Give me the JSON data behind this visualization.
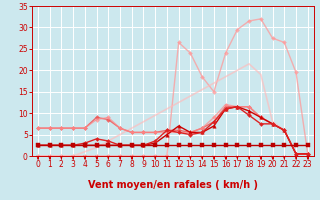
{
  "background_color": "#cce8ee",
  "grid_color": "#ffffff",
  "xlabel": "Vent moyen/en rafales ( km/h )",
  "xlabel_color": "#cc0000",
  "xlabel_fontsize": 7,
  "tick_color": "#cc0000",
  "arrow_color": "#cc0000",
  "xlim": [
    -0.5,
    23.5
  ],
  "ylim": [
    0,
    35
  ],
  "yticks": [
    0,
    5,
    10,
    15,
    20,
    25,
    30,
    35
  ],
  "xticks": [
    0,
    1,
    2,
    3,
    4,
    5,
    6,
    7,
    8,
    9,
    10,
    11,
    12,
    13,
    14,
    15,
    16,
    17,
    18,
    19,
    20,
    21,
    22,
    23
  ],
  "lines": [
    {
      "x": [
        0,
        1,
        2,
        3,
        4,
        5,
        6,
        7,
        8,
        9,
        10,
        11,
        12,
        13,
        14,
        15,
        16,
        17,
        18,
        19,
        20,
        21,
        22,
        23
      ],
      "y": [
        2.5,
        2.5,
        2.5,
        2.5,
        2.5,
        2.5,
        2.5,
        2.5,
        2.5,
        2.5,
        2.5,
        2.5,
        2.5,
        2.5,
        2.5,
        2.5,
        2.5,
        2.5,
        2.5,
        2.5,
        2.5,
        2.5,
        2.5,
        2.5
      ],
      "color": "#bb0000",
      "linewidth": 1.0,
      "marker": "s",
      "markersize": 2.5,
      "alpha": 1.0,
      "linestyle": "-",
      "zorder": 5
    },
    {
      "x": [
        0,
        1,
        2,
        3,
        4,
        5,
        6,
        7,
        8,
        9,
        10,
        11,
        12,
        13,
        14,
        15,
        16,
        17,
        18,
        19,
        20,
        21,
        22,
        23
      ],
      "y": [
        2.5,
        2.5,
        2.5,
        2.5,
        2.5,
        2.5,
        2.5,
        2.5,
        2.5,
        2.5,
        3.0,
        5.0,
        7.0,
        5.5,
        5.5,
        7.0,
        11.0,
        11.5,
        10.5,
        9.0,
        7.5,
        6.0,
        0.5,
        0.5
      ],
      "color": "#cc0000",
      "linewidth": 1.0,
      "marker": "^",
      "markersize": 2.5,
      "alpha": 1.0,
      "linestyle": "-",
      "zorder": 4
    },
    {
      "x": [
        0,
        1,
        2,
        3,
        4,
        5,
        6,
        7,
        8,
        9,
        10,
        11,
        12,
        13,
        14,
        15,
        16,
        17,
        18,
        19,
        20,
        21,
        22,
        23
      ],
      "y": [
        2.5,
        2.5,
        2.5,
        2.5,
        3.0,
        4.0,
        3.5,
        2.5,
        2.5,
        2.5,
        3.5,
        6.0,
        5.5,
        5.0,
        5.5,
        8.0,
        11.0,
        11.5,
        9.5,
        7.5,
        7.5,
        6.0,
        0.5,
        0.5
      ],
      "color": "#dd2222",
      "linewidth": 1.0,
      "marker": "D",
      "markersize": 2.0,
      "alpha": 1.0,
      "linestyle": "-",
      "zorder": 4
    },
    {
      "x": [
        0,
        1,
        2,
        3,
        4,
        5,
        6,
        7,
        8,
        9,
        10,
        11,
        12,
        13,
        14,
        15,
        16,
        17,
        18,
        19,
        20,
        21,
        22,
        23
      ],
      "y": [
        6.5,
        6.5,
        6.5,
        6.5,
        6.5,
        9.0,
        8.5,
        6.5,
        5.5,
        5.5,
        5.5,
        6.0,
        6.0,
        5.5,
        6.5,
        8.0,
        11.5,
        11.5,
        11.5,
        9.0,
        7.5,
        6.0,
        0.5,
        0.5
      ],
      "color": "#ee5555",
      "linewidth": 1.0,
      "marker": "D",
      "markersize": 2.0,
      "alpha": 0.85,
      "linestyle": "-",
      "zorder": 3
    },
    {
      "x": [
        0,
        1,
        2,
        3,
        4,
        5,
        6,
        7,
        8,
        9,
        10,
        11,
        12,
        13,
        14,
        15,
        16,
        17,
        18,
        19,
        20,
        21,
        22,
        23
      ],
      "y": [
        6.5,
        6.5,
        6.5,
        6.5,
        6.5,
        8.5,
        9.0,
        6.5,
        5.5,
        5.5,
        5.5,
        5.5,
        5.5,
        5.5,
        6.5,
        9.0,
        12.0,
        11.5,
        11.5,
        9.0,
        7.5,
        6.0,
        0.5,
        0.5
      ],
      "color": "#ff8888",
      "linewidth": 1.0,
      "marker": "D",
      "markersize": 2.0,
      "alpha": 0.7,
      "linestyle": "-",
      "zorder": 3
    },
    {
      "x": [
        0,
        1,
        2,
        3,
        4,
        5,
        6,
        7,
        8,
        9,
        10,
        11,
        12,
        13,
        14,
        15,
        16,
        17,
        18,
        19,
        20,
        21,
        22,
        23
      ],
      "y": [
        0,
        0,
        0,
        0,
        0,
        0,
        0,
        0,
        0,
        0,
        0,
        0,
        26.5,
        24.0,
        18.5,
        15.0,
        24.0,
        29.5,
        31.5,
        32.0,
        27.5,
        26.5,
        19.5,
        0.5
      ],
      "color": "#ff9999",
      "linewidth": 1.0,
      "marker": "D",
      "markersize": 2.0,
      "alpha": 0.75,
      "linestyle": "-",
      "zorder": 2
    },
    {
      "x": [
        0,
        1,
        2,
        3,
        4,
        5,
        6,
        7,
        8,
        9,
        10,
        11,
        12,
        13,
        14,
        15,
        16,
        17,
        18,
        19,
        20,
        21,
        22,
        23
      ],
      "y": [
        0,
        0,
        0,
        0,
        1.0,
        2.0,
        3.5,
        5.0,
        6.5,
        8.0,
        9.5,
        11.0,
        12.5,
        14.0,
        15.5,
        17.0,
        18.5,
        20.0,
        21.5,
        19.0,
        8.0,
        6.0,
        0.5,
        0.5
      ],
      "color": "#ffbbbb",
      "linewidth": 1.2,
      "marker": null,
      "markersize": 0,
      "alpha": 0.65,
      "linestyle": "-",
      "zorder": 2
    }
  ]
}
